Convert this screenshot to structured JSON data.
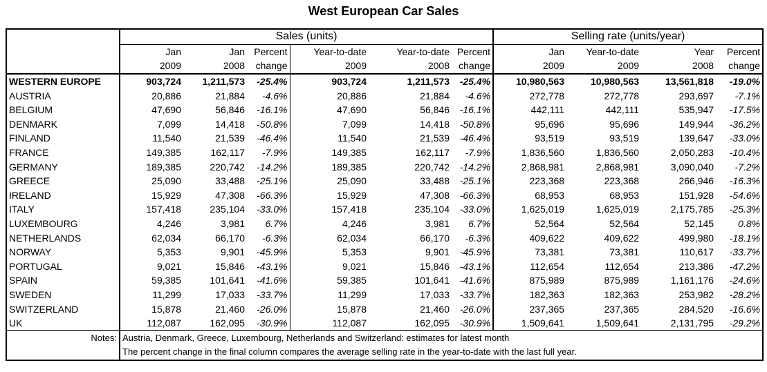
{
  "title": "West European Car Sales",
  "groups": {
    "sales": "Sales (units)",
    "rate": "Selling rate (units/year)"
  },
  "headers_line1": [
    "Jan",
    "Jan",
    "Percent",
    "Year-to-date",
    "Year-to-date",
    "Percent",
    "Jan",
    "Year-to-date",
    "Year",
    "Percent"
  ],
  "headers_line2": [
    "2009",
    "2008",
    "change",
    "2009",
    "2008",
    "change",
    "2009",
    "2009",
    "2008",
    "change"
  ],
  "rows": [
    [
      "WESTERN EUROPE",
      "903,724",
      "1,211,573",
      "-25.4%",
      "903,724",
      "1,211,573",
      "-25.4%",
      "10,980,563",
      "10,980,563",
      "13,561,818",
      "-19.0%"
    ],
    [
      "AUSTRIA",
      "20,886",
      "21,884",
      "-4.6%",
      "20,886",
      "21,884",
      "-4.6%",
      "272,778",
      "272,778",
      "293,697",
      "-7.1%"
    ],
    [
      "BELGIUM",
      "47,690",
      "56,846",
      "-16.1%",
      "47,690",
      "56,846",
      "-16.1%",
      "442,111",
      "442,111",
      "535,947",
      "-17.5%"
    ],
    [
      "DENMARK",
      "7,099",
      "14,418",
      "-50.8%",
      "7,099",
      "14,418",
      "-50.8%",
      "95,696",
      "95,696",
      "149,944",
      "-36.2%"
    ],
    [
      "FINLAND",
      "11,540",
      "21,539",
      "-46.4%",
      "11,540",
      "21,539",
      "-46.4%",
      "93,519",
      "93,519",
      "139,647",
      "-33.0%"
    ],
    [
      "FRANCE",
      "149,385",
      "162,117",
      "-7.9%",
      "149,385",
      "162,117",
      "-7.9%",
      "1,836,560",
      "1,836,560",
      "2,050,283",
      "-10.4%"
    ],
    [
      "GERMANY",
      "189,385",
      "220,742",
      "-14.2%",
      "189,385",
      "220,742",
      "-14.2%",
      "2,868,981",
      "2,868,981",
      "3,090,040",
      "-7.2%"
    ],
    [
      "GREECE",
      "25,090",
      "33,488",
      "-25.1%",
      "25,090",
      "33,488",
      "-25.1%",
      "223,368",
      "223,368",
      "266,946",
      "-16.3%"
    ],
    [
      "IRELAND",
      "15,929",
      "47,308",
      "-66.3%",
      "15,929",
      "47,308",
      "-66.3%",
      "68,953",
      "68,953",
      "151,928",
      "-54.6%"
    ],
    [
      "ITALY",
      "157,418",
      "235,104",
      "-33.0%",
      "157,418",
      "235,104",
      "-33.0%",
      "1,625,019",
      "1,625,019",
      "2,175,785",
      "-25.3%"
    ],
    [
      "LUXEMBOURG",
      "4,246",
      "3,981",
      "6.7%",
      "4,246",
      "3,981",
      "6.7%",
      "52,564",
      "52,564",
      "52,145",
      "0.8%"
    ],
    [
      "NETHERLANDS",
      "62,034",
      "66,170",
      "-6.3%",
      "62,034",
      "66,170",
      "-6.3%",
      "409,622",
      "409,622",
      "499,980",
      "-18.1%"
    ],
    [
      "NORWAY",
      "5,353",
      "9,901",
      "-45.9%",
      "5,353",
      "9,901",
      "-45.9%",
      "73,381",
      "73,381",
      "110,617",
      "-33.7%"
    ],
    [
      "PORTUGAL",
      "9,021",
      "15,846",
      "-43.1%",
      "9,021",
      "15,846",
      "-43.1%",
      "112,654",
      "112,654",
      "213,386",
      "-47.2%"
    ],
    [
      "SPAIN",
      "59,385",
      "101,641",
      "-41.6%",
      "59,385",
      "101,641",
      "-41.6%",
      "875,989",
      "875,989",
      "1,161,176",
      "-24.6%"
    ],
    [
      "SWEDEN",
      "11,299",
      "17,033",
      "-33.7%",
      "11,299",
      "17,033",
      "-33.7%",
      "182,363",
      "182,363",
      "253,982",
      "-28.2%"
    ],
    [
      "SWITZERLAND",
      "15,878",
      "21,460",
      "-26.0%",
      "15,878",
      "21,460",
      "-26.0%",
      "237,365",
      "237,365",
      "284,520",
      "-16.6%"
    ],
    [
      "UK",
      "112,087",
      "162,095",
      "-30.9%",
      "112,087",
      "162,095",
      "-30.9%",
      "1,509,641",
      "1,509,641",
      "2,131,795",
      "-29.2%"
    ]
  ],
  "notes": {
    "label": "Notes:",
    "lines": [
      "Austria, Denmark, Greece, Luxembourg, Netherlands and Switzerland: estimates for latest month",
      "The percent change in the final column compares the average selling rate in the year-to-date with the last full year."
    ]
  }
}
